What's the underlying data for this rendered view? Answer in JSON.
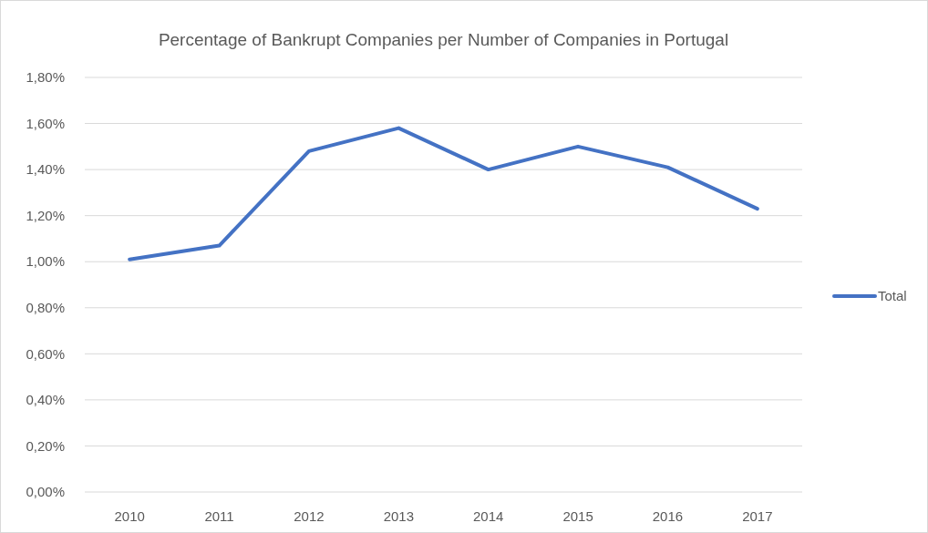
{
  "chart_data": {
    "type": "line",
    "title": "Percentage of Bankrupt Companies per Number of Companies in Portugal",
    "categories": [
      "2010",
      "2011",
      "2012",
      "2013",
      "2014",
      "2015",
      "2016",
      "2017"
    ],
    "series": [
      {
        "name": "Total",
        "color": "#4472c4",
        "values": [
          1.01,
          1.07,
          1.48,
          1.58,
          1.4,
          1.5,
          1.41,
          1.23
        ]
      }
    ],
    "ylim": [
      0,
      1.8
    ],
    "yticks": [
      {
        "value": 0,
        "label": "0,00%"
      },
      {
        "value": 0.2,
        "label": "0,20%"
      },
      {
        "value": 0.4,
        "label": "0,40%"
      },
      {
        "value": 0.6,
        "label": "0,60%"
      },
      {
        "value": 0.8,
        "label": "0,80%"
      },
      {
        "value": 1.0,
        "label": "1,00%"
      },
      {
        "value": 1.2,
        "label": "1,20%"
      },
      {
        "value": 1.4,
        "label": "1,40%"
      },
      {
        "value": 1.6,
        "label": "1,60%"
      },
      {
        "value": 1.8,
        "label": "1,80%"
      }
    ],
    "grid": "y",
    "legend": "right",
    "marker": "none",
    "line_style": "solid"
  }
}
